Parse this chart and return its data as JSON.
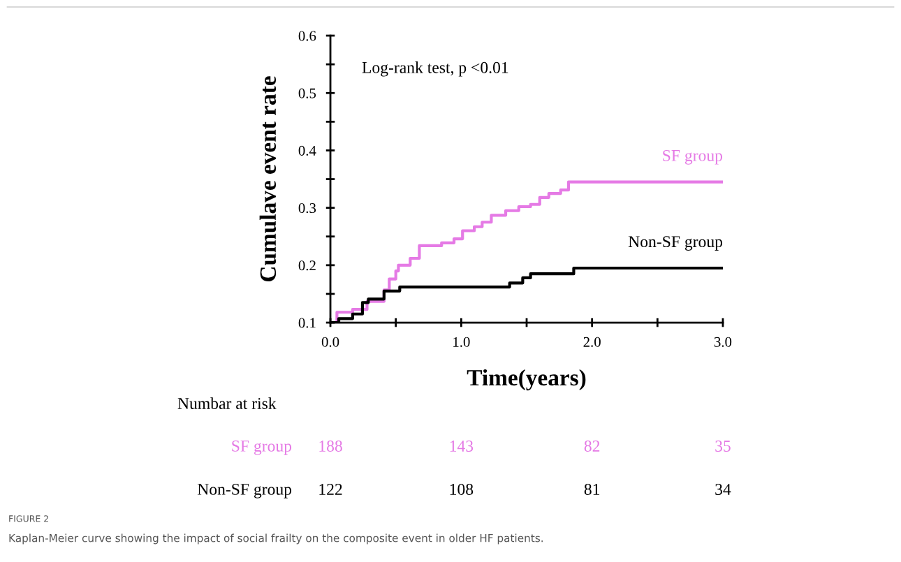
{
  "chart_data": {
    "type": "step",
    "ylabel": "Cumulave event rate",
    "xlabel": "Time(years)",
    "xlim": [
      0,
      3
    ],
    "xticks": [
      {
        "value": 0,
        "label": "0.0"
      },
      {
        "value": 0.5,
        "label": null
      },
      {
        "value": 1,
        "label": "1.0"
      },
      {
        "value": 1.5,
        "label": null
      },
      {
        "value": 2,
        "label": "2.0"
      },
      {
        "value": 2.5,
        "label": null
      },
      {
        "value": 3,
        "label": "3.0"
      }
    ],
    "ylim": [
      0.1,
      0.6
    ],
    "yticks": [
      0.1,
      {
        "value": 0.15,
        "label": null
      },
      0.2,
      {
        "value": 0.25,
        "label": null
      },
      0.3,
      {
        "value": 0.35,
        "label": null
      },
      0.4,
      {
        "value": 0.45,
        "label": null
      },
      0.5,
      {
        "value": 0.55,
        "label": null
      },
      0.6
    ],
    "grid": false,
    "legend": false,
    "line_style": "solid",
    "marker": "none",
    "series": [
      {
        "name": "SF group",
        "color": "#e57ae5",
        "x": [
          0,
          0.05,
          0.17,
          0.28,
          0.41,
          0.45,
          0.5,
          0.52,
          0.61,
          0.68,
          0.85,
          0.945,
          1.01,
          1.1,
          1.16,
          1.23,
          1.34,
          1.44,
          1.53,
          1.6,
          1.67,
          1.76,
          1.82,
          3.0
        ],
        "values": [
          0.1,
          0.118,
          0.123,
          0.137,
          0.157,
          0.176,
          0.19,
          0.2,
          0.212,
          0.234,
          0.239,
          0.246,
          0.26,
          0.267,
          0.275,
          0.287,
          0.295,
          0.302,
          0.306,
          0.318,
          0.325,
          0.331,
          0.345,
          0.345
        ]
      },
      {
        "name": "Non-SF group",
        "color": "#000000",
        "x": [
          0,
          0.064,
          0.17,
          0.245,
          0.29,
          0.41,
          0.53,
          1.37,
          1.47,
          1.53,
          1.86,
          3.0
        ],
        "values": [
          0.1,
          0.107,
          0.115,
          0.135,
          0.141,
          0.155,
          0.162,
          0.169,
          0.178,
          0.185,
          0.195,
          0.195
        ]
      }
    ],
    "annotations": [
      "Log-rank test, p <0.01",
      "Numbar at risk",
      "SF group",
      "188",
      "143",
      "82",
      "35",
      "Non-SF group",
      "122",
      "108",
      "81",
      "34",
      "FIGURE 2",
      "Kaplan-Meier curve showing the impact of social frailty on the composite event in older HF patients."
    ]
  }
}
